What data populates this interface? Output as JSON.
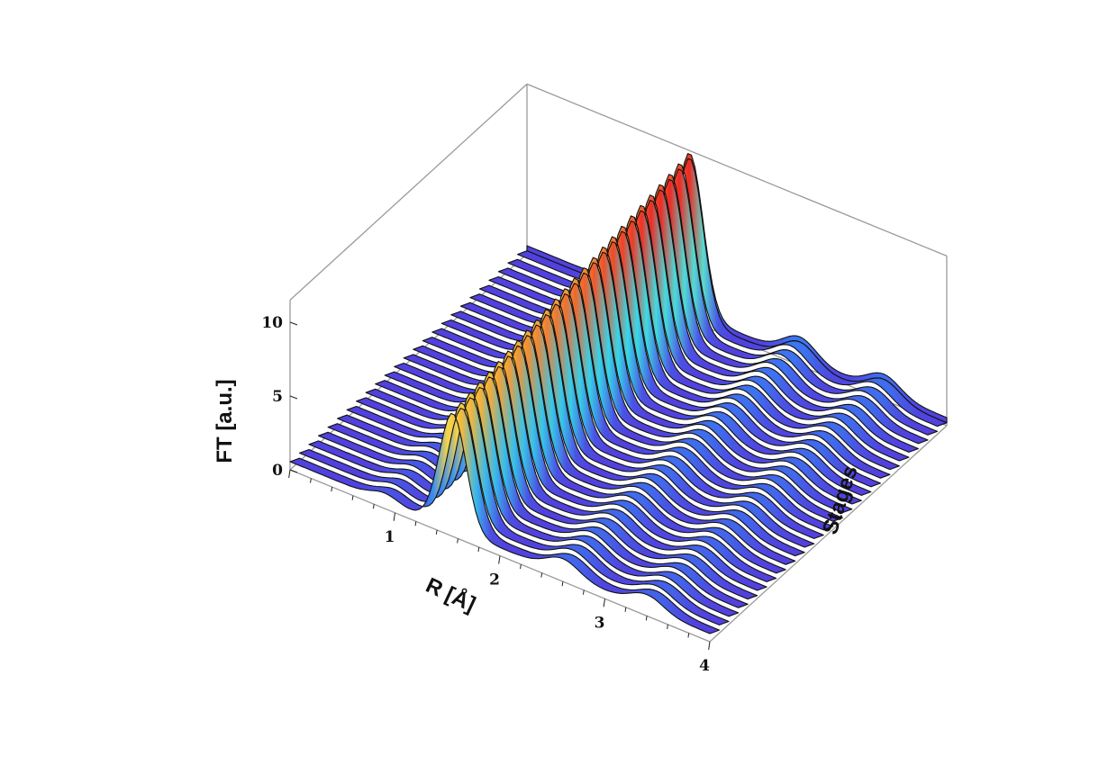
{
  "chart_data": {
    "type": "surface",
    "title": "",
    "x_label": "R [Å]",
    "y_label": "Stages",
    "z_label": "FT [a.u.]",
    "x_ticks": [
      "0",
      "1",
      "2",
      "3",
      "4"
    ],
    "z_ticks": [
      "0",
      "5",
      "10"
    ],
    "x_range": [
      0,
      4
    ],
    "z_range": [
      0,
      10
    ],
    "n_stages": 26,
    "colormap": [
      "#5a2bd6",
      "#3a7bf2",
      "#37d9e6",
      "#f6f05a",
      "#f2b23a",
      "#ee2a25"
    ],
    "grid": false,
    "peaks": [
      {
        "r": 0.9,
        "height_first_stage": 0.5,
        "height_last_stage": 1.2,
        "width": 0.18
      },
      {
        "r": 1.55,
        "height_first_stage": 7.8,
        "height_last_stage": 10.8,
        "width": 0.18
      },
      {
        "r": 2.6,
        "height_first_stage": 1.0,
        "height_last_stage": 1.4,
        "width": 0.22
      },
      {
        "r": 3.4,
        "height_first_stage": 0.9,
        "height_last_stage": 1.2,
        "width": 0.22
      }
    ]
  }
}
